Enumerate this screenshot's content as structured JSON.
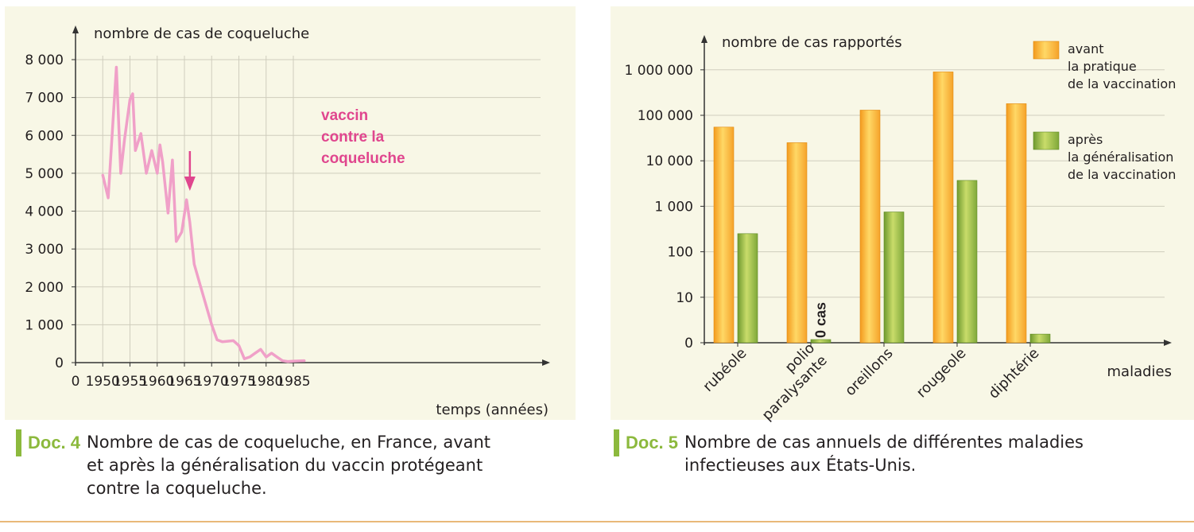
{
  "chart_data": [
    {
      "type": "line",
      "ylabel": "nombre de cas de coqueluche",
      "xlabel": "temps (années)",
      "x_ticks": [
        "0",
        "1950",
        "1955",
        "1960",
        "1965",
        "1970",
        "1975",
        "1980",
        "1985"
      ],
      "y_ticks": [
        "0",
        "1 000",
        "2 000",
        "3 000",
        "4 000",
        "5 000",
        "6 000",
        "7 000",
        "8 000"
      ],
      "xlim": [
        1945,
        1987
      ],
      "ylim": [
        0,
        8000
      ],
      "color": "#f0a0c8",
      "annotation": {
        "lines": [
          "vaccin",
          "contre la",
          "coqueluche"
        ],
        "x": 1966,
        "color": "#e0468e"
      },
      "x": [
        1950,
        1951,
        1952.5,
        1953.3,
        1954,
        1955,
        1955.5,
        1956,
        1957,
        1958,
        1959,
        1960,
        1960.5,
        1961,
        1962,
        1962.8,
        1963.5,
        1964.5,
        1965.4,
        1966,
        1966.8,
        1968,
        1969,
        1970,
        1971,
        1972,
        1974,
        1975,
        1976,
        1977,
        1978,
        1979,
        1980,
        1981,
        1982,
        1983,
        1984,
        1985,
        1987
      ],
      "y": [
        4950,
        4350,
        7800,
        5000,
        5900,
        6950,
        7100,
        5600,
        6050,
        5000,
        5600,
        5000,
        5750,
        5300,
        3950,
        5350,
        3200,
        3450,
        4300,
        3700,
        2600,
        2000,
        1500,
        1000,
        600,
        550,
        580,
        450,
        100,
        150,
        250,
        350,
        150,
        250,
        150,
        50,
        30,
        40,
        50
      ]
    },
    {
      "type": "bar",
      "ylabel": "nombre de cas rapportés",
      "xlabel": "maladies",
      "y_scale": "log",
      "y_ticks": [
        "0",
        "10",
        "100",
        "1 000",
        "10 000",
        "100 000",
        "1 000 000"
      ],
      "categories": [
        "rubéole",
        "polio\nparalysante",
        "oreillons",
        "rougeole",
        "diphtérie"
      ],
      "series": [
        {
          "name": "avant\nla pratique\nde la vaccination",
          "color": "#f7a72a",
          "values": [
            55000,
            25000,
            130000,
            900000,
            180000
          ]
        },
        {
          "name": "après\nla généralisation\nde la vaccination",
          "color": "#8fb84a",
          "values": [
            250,
            0,
            750,
            3700,
            1.9
          ]
        }
      ],
      "annotations": [
        "0 cas"
      ]
    }
  ],
  "captions": {
    "doc4_tag": "Doc. 4",
    "doc4_text": "Nombre de cas de coqueluche, en France, avant et après la généralisation du vaccin protégeant contre la coqueluche.",
    "doc5_tag": "Doc. 5",
    "doc5_text": "Nombre de cas annuels de différentes maladies infectieuses aux États-Unis."
  }
}
